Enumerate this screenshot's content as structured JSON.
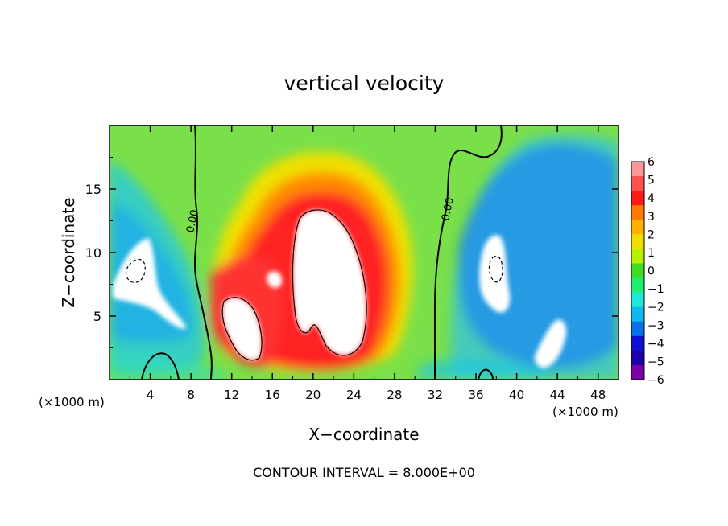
{
  "chart_data": {
    "type": "heatmap",
    "title": "vertical velocity",
    "xlabel": "X−coordinate",
    "ylabel": "Z−coordinate",
    "x_unit_left": "(×1000 m)",
    "x_unit_right": "(×1000 m)",
    "footer": "CONTOUR INTERVAL = 8.000E+00",
    "xlim": [
      0,
      50
    ],
    "ylim": [
      0,
      20
    ],
    "x_ticks": [
      4,
      8,
      12,
      16,
      20,
      24,
      28,
      32,
      36,
      40,
      44,
      48
    ],
    "x_tick_labels": [
      "4",
      "8",
      "12",
      "16",
      "20",
      "24",
      "28",
      "32",
      "36",
      "40",
      "44",
      "48"
    ],
    "y_ticks": [
      5,
      10,
      15
    ],
    "y_tick_labels": [
      "5",
      "10",
      "15"
    ],
    "grid": false,
    "colorbar": {
      "levels": [
        6,
        5,
        4,
        3,
        2,
        1,
        0,
        -1,
        -2,
        -3,
        -4,
        -5,
        -6
      ],
      "level_labels": [
        "6",
        "5",
        "4",
        "3",
        "2",
        "1",
        "0",
        "−1",
        "−2",
        "−3",
        "−4",
        "−5",
        "−6"
      ],
      "colors": [
        "#ff9999",
        "#ff5050",
        "#ff1a1a",
        "#ff7a00",
        "#ffb000",
        "#f0e000",
        "#b8f000",
        "#40dd20",
        "#20ee70",
        "#20e8d8",
        "#10b8f0",
        "#0870e8",
        "#1010d0",
        "#2000a8",
        "#7a00aa"
      ],
      "over_color": "#ffffff",
      "under_color": "#ffffff"
    },
    "zero_contour_labels": [
      "0.00",
      "0.00"
    ],
    "features": [
      {
        "type": "updraft_core",
        "x": 20.5,
        "z": 10.0,
        "peak": "> 6"
      },
      {
        "type": "updraft_core",
        "x": 13.0,
        "z": 4.5,
        "peak": "> 6"
      },
      {
        "type": "downdraft_core",
        "x": 3.5,
        "z": 8.5,
        "peak": "< -6"
      },
      {
        "type": "downdraft_core",
        "x": 37.5,
        "z": 8.5,
        "peak": "< -6"
      },
      {
        "type": "downdraft_core",
        "x": 43.0,
        "z": 3.0,
        "peak": "< -6"
      }
    ]
  }
}
